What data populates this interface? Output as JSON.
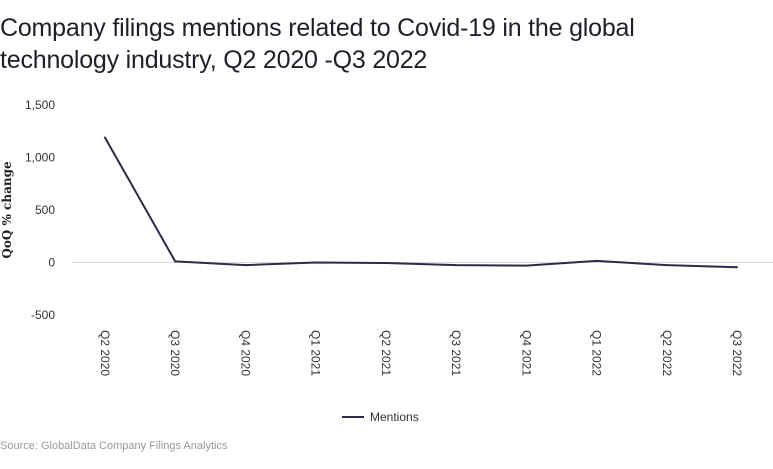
{
  "header": {
    "title": "Company filings mentions related to Covid-19 in the global technology industry, Q2 2020 -Q3 2022"
  },
  "footer": {
    "source": "Source: GlobalData Company Filings Analytics"
  },
  "colors": {
    "series": "#2d2a4a",
    "grid": "#d9d9d9"
  },
  "chart_data": {
    "type": "line",
    "title": "Company filings mentions related to Covid-19 in the global technology industry, Q2 2020 -Q3 2022",
    "xlabel": "",
    "ylabel": "QoQ % change",
    "categories": [
      "Q2 2020",
      "Q3 2020",
      "Q4 2020",
      "Q1 2021",
      "Q2 2021",
      "Q3 2021",
      "Q4 2021",
      "Q1 2022",
      "Q2 2022",
      "Q3 2022"
    ],
    "series": [
      {
        "name": "Mentions",
        "values": [
          1190,
          10,
          -25,
          0,
          -5,
          -25,
          -30,
          15,
          -25,
          -45
        ]
      }
    ],
    "ylim": [
      -500,
      1500
    ],
    "yticks": [
      1500,
      1000,
      500,
      0,
      -500
    ],
    "ytick_labels": [
      "1,500",
      "1,000",
      "500",
      "0",
      "-500"
    ],
    "grid": "zero-line only",
    "legend_position": "bottom-center"
  }
}
